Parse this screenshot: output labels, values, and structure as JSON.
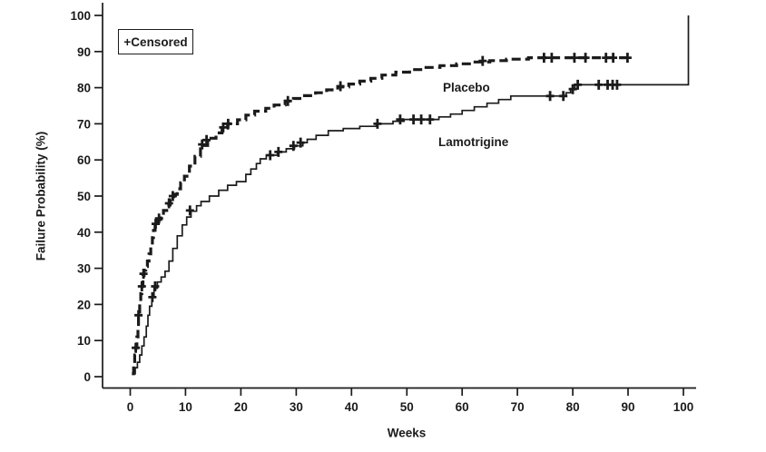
{
  "chart_data": {
    "type": "line",
    "subtype": "kaplan-meier-step",
    "title": "",
    "xlabel": "Weeks",
    "ylabel": "Failure Probability (%)",
    "legend": "+Censored",
    "legend_position": "top-left",
    "grid": false,
    "xlim": [
      0,
      100
    ],
    "ylim": [
      0,
      100
    ],
    "x_ticks": [
      0,
      10,
      20,
      30,
      40,
      50,
      60,
      70,
      80,
      90,
      100
    ],
    "y_ticks": [
      0,
      10,
      20,
      30,
      40,
      50,
      60,
      70,
      80,
      90,
      100
    ],
    "axis_color": "#1b1b1b",
    "series": [
      {
        "name": "Placebo",
        "style": "dashed",
        "points": [
          [
            0.3,
            0.8
          ],
          [
            0.6,
            3
          ],
          [
            0.8,
            6
          ],
          [
            1.0,
            8
          ],
          [
            1.2,
            11
          ],
          [
            1.4,
            14
          ],
          [
            1.5,
            17
          ],
          [
            1.7,
            20
          ],
          [
            1.9,
            23
          ],
          [
            2.1,
            25
          ],
          [
            2.3,
            28
          ],
          [
            2.5,
            29.5
          ],
          [
            2.8,
            30.5
          ],
          [
            3.1,
            32
          ],
          [
            3.4,
            34
          ],
          [
            3.7,
            36.5
          ],
          [
            4.0,
            38.5
          ],
          [
            4.2,
            40.5
          ],
          [
            4.5,
            42
          ],
          [
            5.0,
            43.5
          ],
          [
            5.5,
            44.8
          ],
          [
            6.0,
            46
          ],
          [
            6.6,
            47.5
          ],
          [
            7.2,
            49
          ],
          [
            7.9,
            50.5
          ],
          [
            8.5,
            52
          ],
          [
            9.1,
            53.7
          ],
          [
            9.8,
            55.5
          ],
          [
            10.7,
            58.3
          ],
          [
            11.7,
            61
          ],
          [
            12.7,
            64
          ],
          [
            14.0,
            66
          ],
          [
            15.5,
            67.5
          ],
          [
            16.6,
            68.8
          ],
          [
            17.6,
            70
          ],
          [
            19.4,
            71.1
          ],
          [
            20.9,
            72.4
          ],
          [
            22.5,
            73.5
          ],
          [
            24.5,
            74.3
          ],
          [
            26.0,
            75.2
          ],
          [
            28.0,
            76.3
          ],
          [
            29.5,
            77
          ],
          [
            31.5,
            77.8
          ],
          [
            33.5,
            78.6
          ],
          [
            35.5,
            79.4
          ],
          [
            37.5,
            80.2
          ],
          [
            39.5,
            81
          ],
          [
            41.5,
            81.8
          ],
          [
            43.5,
            82.6
          ],
          [
            45.5,
            83.5
          ],
          [
            48.0,
            84.3
          ],
          [
            50.5,
            85
          ],
          [
            53.0,
            85.6
          ],
          [
            56.0,
            86.1
          ],
          [
            59.0,
            86.6
          ],
          [
            62.0,
            87.1
          ],
          [
            65.0,
            87.5
          ],
          [
            68.0,
            87.9
          ],
          [
            72.0,
            88.3
          ],
          [
            90.0,
            88.3
          ]
        ],
        "censored": [
          [
            1.0,
            8
          ],
          [
            1.5,
            17
          ],
          [
            2.1,
            25
          ],
          [
            2.4,
            28.5
          ],
          [
            4.6,
            42.3
          ],
          [
            5.2,
            43.8
          ],
          [
            7.0,
            48
          ],
          [
            7.7,
            50
          ],
          [
            13.0,
            64.3
          ],
          [
            13.8,
            65.5
          ],
          [
            16.8,
            69
          ],
          [
            17.7,
            70
          ],
          [
            28.5,
            76.3
          ],
          [
            38.0,
            80.4
          ],
          [
            63.7,
            87.4
          ],
          [
            74.8,
            88.3
          ],
          [
            76.2,
            88.3
          ],
          [
            80.3,
            88.3
          ],
          [
            82.3,
            88.3
          ],
          [
            86.0,
            88.3
          ],
          [
            87.3,
            88.3
          ],
          [
            89.9,
            88.3
          ]
        ]
      },
      {
        "name": "Lamotrigine",
        "style": "solid",
        "points": [
          [
            0.5,
            0.8
          ],
          [
            0.9,
            2.5
          ],
          [
            1.3,
            4
          ],
          [
            1.7,
            6
          ],
          [
            2.1,
            8.5
          ],
          [
            2.5,
            11
          ],
          [
            2.9,
            14
          ],
          [
            3.2,
            17
          ],
          [
            3.5,
            19.5
          ],
          [
            3.9,
            22
          ],
          [
            4.3,
            24.5
          ],
          [
            4.9,
            26.2
          ],
          [
            5.6,
            27.6
          ],
          [
            6.3,
            29.2
          ],
          [
            7.0,
            32
          ],
          [
            7.7,
            35.5
          ],
          [
            8.5,
            39
          ],
          [
            9.4,
            42
          ],
          [
            10.2,
            44.2
          ],
          [
            11.0,
            45.8
          ],
          [
            12.0,
            47.3
          ],
          [
            12.8,
            48.5
          ],
          [
            14.3,
            50
          ],
          [
            16.0,
            51.6
          ],
          [
            17.6,
            53
          ],
          [
            19.2,
            54
          ],
          [
            20.9,
            56
          ],
          [
            21.8,
            57.5
          ],
          [
            22.8,
            59
          ],
          [
            23.5,
            60.3
          ],
          [
            24.6,
            61.3
          ],
          [
            26.6,
            62.2
          ],
          [
            28.2,
            63.1
          ],
          [
            29.7,
            63.9
          ],
          [
            31.2,
            64.8
          ],
          [
            32.0,
            65.7
          ],
          [
            33.6,
            66.8
          ],
          [
            35.8,
            68.1
          ],
          [
            38.5,
            68.7
          ],
          [
            41.5,
            69.3
          ],
          [
            44.5,
            70
          ],
          [
            47.5,
            70.7
          ],
          [
            49.5,
            71.2
          ],
          [
            55.8,
            71.9
          ],
          [
            57.9,
            72.7
          ],
          [
            60.0,
            73.7
          ],
          [
            62.2,
            74.7
          ],
          [
            64.5,
            75.7
          ],
          [
            66.6,
            76.7
          ],
          [
            68.8,
            77.7
          ],
          [
            78.8,
            78.6
          ],
          [
            79.6,
            79.6
          ],
          [
            80.4,
            80.8
          ],
          [
            100.9,
            80.8
          ],
          [
            100.9,
            100
          ]
        ],
        "censored": [
          [
            4.0,
            22
          ],
          [
            4.5,
            25
          ],
          [
            10.8,
            46
          ],
          [
            25.3,
            61.3
          ],
          [
            26.8,
            62.2
          ],
          [
            29.5,
            63.9
          ],
          [
            30.8,
            64.8
          ],
          [
            44.7,
            70
          ],
          [
            48.8,
            71.2
          ],
          [
            51.2,
            71.2
          ],
          [
            52.6,
            71.2
          ],
          [
            54.2,
            71.2
          ],
          [
            75.9,
            77.7
          ],
          [
            78.3,
            77.7
          ],
          [
            80.0,
            79.6
          ],
          [
            80.9,
            80.8
          ],
          [
            84.7,
            80.8
          ],
          [
            86.3,
            80.8
          ],
          [
            87.2,
            80.8
          ],
          [
            88.0,
            80.8
          ]
        ]
      }
    ]
  }
}
